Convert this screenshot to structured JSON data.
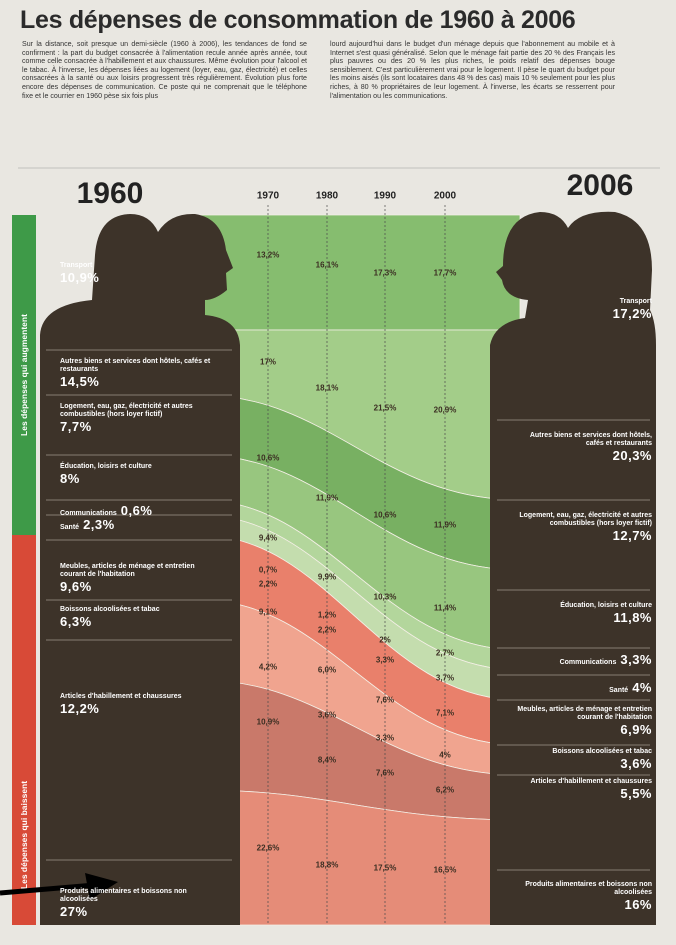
{
  "title": "Les dépenses de consommation de 1960 à 2006",
  "intro": [
    "Sur la distance, soit presque un demi-siècle (1960 à 2006), les tendances de fond se confirment : la part du budget consacrée à l'alimentation recule année après année, tout comme celle consacrée à l'habillement et aux chaussures. Même évolution pour l'alcool et le tabac. À l'inverse, les dépenses liées au logement (loyer, eau, gaz, électricité) et celles consacrées à la santé ou aux loisirs progressent très régulièrement. Évolution plus forte encore des dépenses de communication. Ce poste qui ne comprenait que le téléphone fixe et le courrier en 1960 pèse six fois plus",
    "lourd aujourd'hui dans le budget d'un ménage depuis que l'abonnement au mobile et à Internet s'est quasi généralisé. Selon que le ménage fait partie des 20 % des Français les plus pauvres ou des 20 % les plus riches, le poids relatif des dépenses bouge sensiblement. C'est particulièrement vrai pour le logement. Il pèse le quart du budget pour les moins aisés (ils sont locataires dans 48 % des cas) mais 10 % seulement pour les plus riches, à 80 % propriétaires de leur logement. À l'inverse, les écarts se resserrent pour l'alimentation ou les communications."
  ],
  "years": [
    "1960",
    "1970",
    "1980",
    "1990",
    "2000",
    "2006"
  ],
  "side_labels": [
    "Les dépenses qui augmentent",
    "Les dépenses qui baissent"
  ],
  "categories": [
    {
      "label": "Transport",
      "values": [
        "10,9%",
        "13,2%",
        "16,1%",
        "17,3%",
        "17,7%",
        "17,2%"
      ]
    },
    {
      "label": "Autres biens et services dont hôtels, cafés et restaurants",
      "values": [
        "14,5%",
        "17%",
        "18,1%",
        "21,5%",
        "20,9%",
        "20,3%"
      ]
    },
    {
      "label": "Logement, eau, gaz, électricité et autres combustibles (hors loyer fictif)",
      "values": [
        "7,7%",
        "10,6%",
        "11,9%",
        "10,6%",
        "11,9%",
        "12,7%"
      ]
    },
    {
      "label": "Éducation, loisirs et culture",
      "values": [
        "8%",
        "9,4%",
        "9,9%",
        "10,3%",
        "11,4%",
        "11,8%"
      ]
    },
    {
      "label": "Communications",
      "values": [
        "0,6%",
        "0,7%",
        "1,2%",
        "2%",
        "2,7%",
        "3,3%"
      ]
    },
    {
      "label": "Santé",
      "values": [
        "2,3%",
        "2,2%",
        "2,2%",
        "3,3%",
        "3,7%",
        "4%"
      ]
    },
    {
      "label": "Meubles, articles de ménage et entretien courant de l'habitation",
      "values": [
        "9,6%",
        "9,1%",
        "6,0%",
        "7,6%",
        "7,1%",
        "6,9%"
      ]
    },
    {
      "label": "Boissons alcoolisées et tabac",
      "values": [
        "6,3%",
        "4,2%",
        "3,6%",
        "3,3%",
        "4%",
        "3,6%"
      ]
    },
    {
      "label": "Articles d'habillement et chaussures",
      "values": [
        "12,2%",
        "10,9%",
        "8,4%",
        "7,6%",
        "6,2%",
        "5,5%"
      ]
    },
    {
      "label": "Produits alimentaires et boissons non alcoolisées",
      "values": [
        "27%",
        "22,6%",
        "18,8%",
        "17,5%",
        "16,5%",
        "16%"
      ]
    }
  ]
}
